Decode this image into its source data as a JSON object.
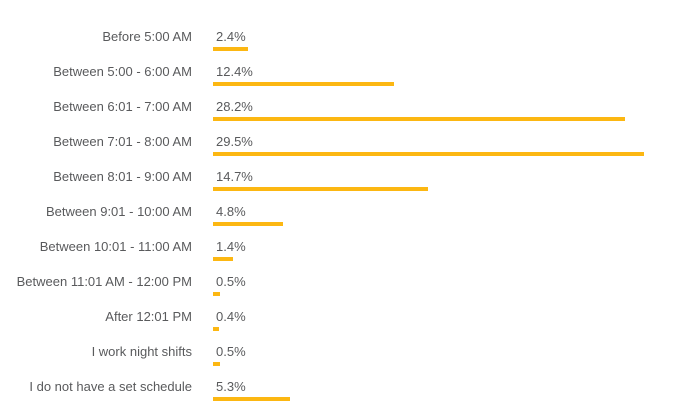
{
  "chart_data": {
    "type": "bar",
    "orientation": "horizontal",
    "title": "",
    "xlabel": "",
    "ylabel": "",
    "categories": [
      "Before 5:00 AM",
      "Between 5:00 - 6:00 AM",
      "Between 6:01 - 7:00 AM",
      "Between 7:01 - 8:00 AM",
      "Between 8:01 - 9:00 AM",
      "Between 9:01 - 10:00 AM",
      "Between 10:01 - 11:00 AM",
      "Between 11:01 AM - 12:00 PM",
      "After 12:01 PM",
      "I work night shifts",
      "I do not have a set schedule"
    ],
    "values": [
      2.4,
      12.4,
      28.2,
      29.5,
      14.7,
      4.8,
      1.4,
      0.5,
      0.4,
      0.5,
      5.3
    ],
    "value_labels": [
      "2.4%",
      "12.4%",
      "28.2%",
      "29.5%",
      "14.7%",
      "4.8%",
      "1.4%",
      "0.5%",
      "0.4%",
      "0.5%",
      "5.3%"
    ],
    "value_range": [
      0,
      29.5
    ],
    "grid": false,
    "legend": false,
    "axes_visible": false,
    "colors": {
      "bar": "#FCB712",
      "text": "#595A5C",
      "background": "#FFFFFF"
    }
  }
}
